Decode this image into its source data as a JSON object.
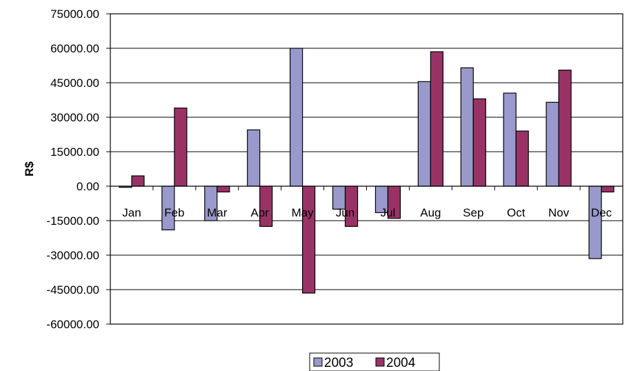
{
  "chart_data": {
    "type": "bar",
    "title": "",
    "xlabel": "",
    "ylabel": "R$",
    "categories": [
      "Jan",
      "Feb",
      "Mar",
      "Apr",
      "May",
      "Jun",
      "Jul",
      "Aug",
      "Sep",
      "Oct",
      "Nov",
      "Dec"
    ],
    "series": [
      {
        "name": "2003",
        "color": "#9999cc",
        "values": [
          -500,
          -19000,
          -15000,
          24500,
          60000,
          -10000,
          -11500,
          45500,
          51500,
          40500,
          36500,
          -31500
        ]
      },
      {
        "name": "2004",
        "color": "#993366",
        "values": [
          4500,
          34000,
          -2500,
          -17500,
          -46500,
          -17500,
          -14000,
          58500,
          38000,
          24000,
          50500,
          -2500
        ]
      }
    ],
    "ylim": [
      -60000,
      75000
    ],
    "yticks": [
      "75000.00",
      "60000.00",
      "45000.00",
      "30000.00",
      "15000.00",
      "0.00",
      "-15000.00",
      "-30000.00",
      "-45000.00",
      "-60000.00"
    ],
    "ytick_values": [
      75000,
      60000,
      45000,
      30000,
      15000,
      0,
      -15000,
      -30000,
      -45000,
      -60000
    ],
    "grid": true,
    "legend": "bottom-center"
  }
}
